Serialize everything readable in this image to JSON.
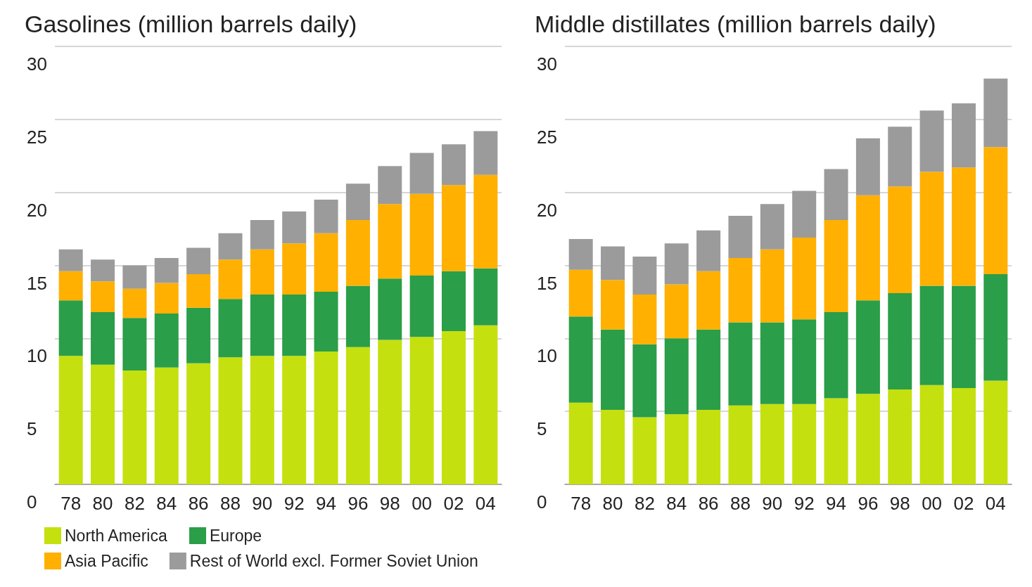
{
  "chart_data": [
    {
      "type": "bar",
      "title": "Gasolines (million barrels daily)",
      "stacked": true,
      "categories": [
        "78",
        "80",
        "82",
        "84",
        "86",
        "88",
        "90",
        "92",
        "94",
        "96",
        "98",
        "00",
        "02",
        "04"
      ],
      "ylim": [
        0,
        30
      ],
      "yticks": [
        0,
        5,
        10,
        15,
        20,
        25,
        30
      ],
      "grid": "y",
      "legend": "bottom left",
      "series": [
        {
          "name": "North America",
          "color": "#c5e00f",
          "values": [
            8.8,
            8.2,
            7.8,
            8.0,
            8.3,
            8.7,
            8.8,
            8.8,
            9.1,
            9.4,
            9.9,
            10.1,
            10.5,
            10.9
          ]
        },
        {
          "name": "Europe",
          "color": "#2a9e48",
          "values": [
            3.8,
            3.6,
            3.6,
            3.7,
            3.8,
            4.0,
            4.2,
            4.2,
            4.1,
            4.2,
            4.2,
            4.2,
            4.1,
            3.9
          ]
        },
        {
          "name": "Asia Pacific",
          "color": "#ffb000",
          "values": [
            2.0,
            2.1,
            2.0,
            2.1,
            2.3,
            2.7,
            3.1,
            3.5,
            4.0,
            4.5,
            5.1,
            5.6,
            5.9,
            6.4
          ]
        },
        {
          "name": "Rest of World excl. Former Soviet Union",
          "color": "#9b9b9b",
          "values": [
            1.5,
            1.5,
            1.6,
            1.7,
            1.8,
            1.8,
            2.0,
            2.2,
            2.3,
            2.5,
            2.6,
            2.8,
            2.8,
            3.0
          ]
        }
      ]
    },
    {
      "type": "bar",
      "title": "Middle distillates (million barrels daily)",
      "stacked": true,
      "categories": [
        "78",
        "80",
        "82",
        "84",
        "86",
        "88",
        "90",
        "92",
        "94",
        "96",
        "98",
        "00",
        "02",
        "04"
      ],
      "ylim": [
        0,
        30
      ],
      "yticks": [
        0,
        5,
        10,
        15,
        20,
        25,
        30
      ],
      "grid": "y",
      "legend": false,
      "series": [
        {
          "color": "#c5e00f",
          "values": [
            5.6,
            5.1,
            4.6,
            4.8,
            5.1,
            5.4,
            5.5,
            5.5,
            5.9,
            6.2,
            6.5,
            6.8,
            6.6,
            7.1
          ]
        },
        {
          "color": "#2a9e48",
          "values": [
            5.9,
            5.5,
            5.0,
            5.2,
            5.5,
            5.7,
            5.6,
            5.8,
            5.9,
            6.4,
            6.6,
            6.8,
            7.0,
            7.3
          ]
        },
        {
          "color": "#ffb000",
          "values": [
            3.2,
            3.4,
            3.4,
            3.7,
            4.0,
            4.4,
            5.0,
            5.6,
            6.3,
            7.2,
            7.3,
            7.8,
            8.1,
            8.7
          ]
        },
        {
          "color": "#9b9b9b",
          "values": [
            2.1,
            2.3,
            2.6,
            2.8,
            2.8,
            2.9,
            3.1,
            3.2,
            3.5,
            3.9,
            4.1,
            4.2,
            4.4,
            4.7
          ]
        }
      ]
    }
  ]
}
